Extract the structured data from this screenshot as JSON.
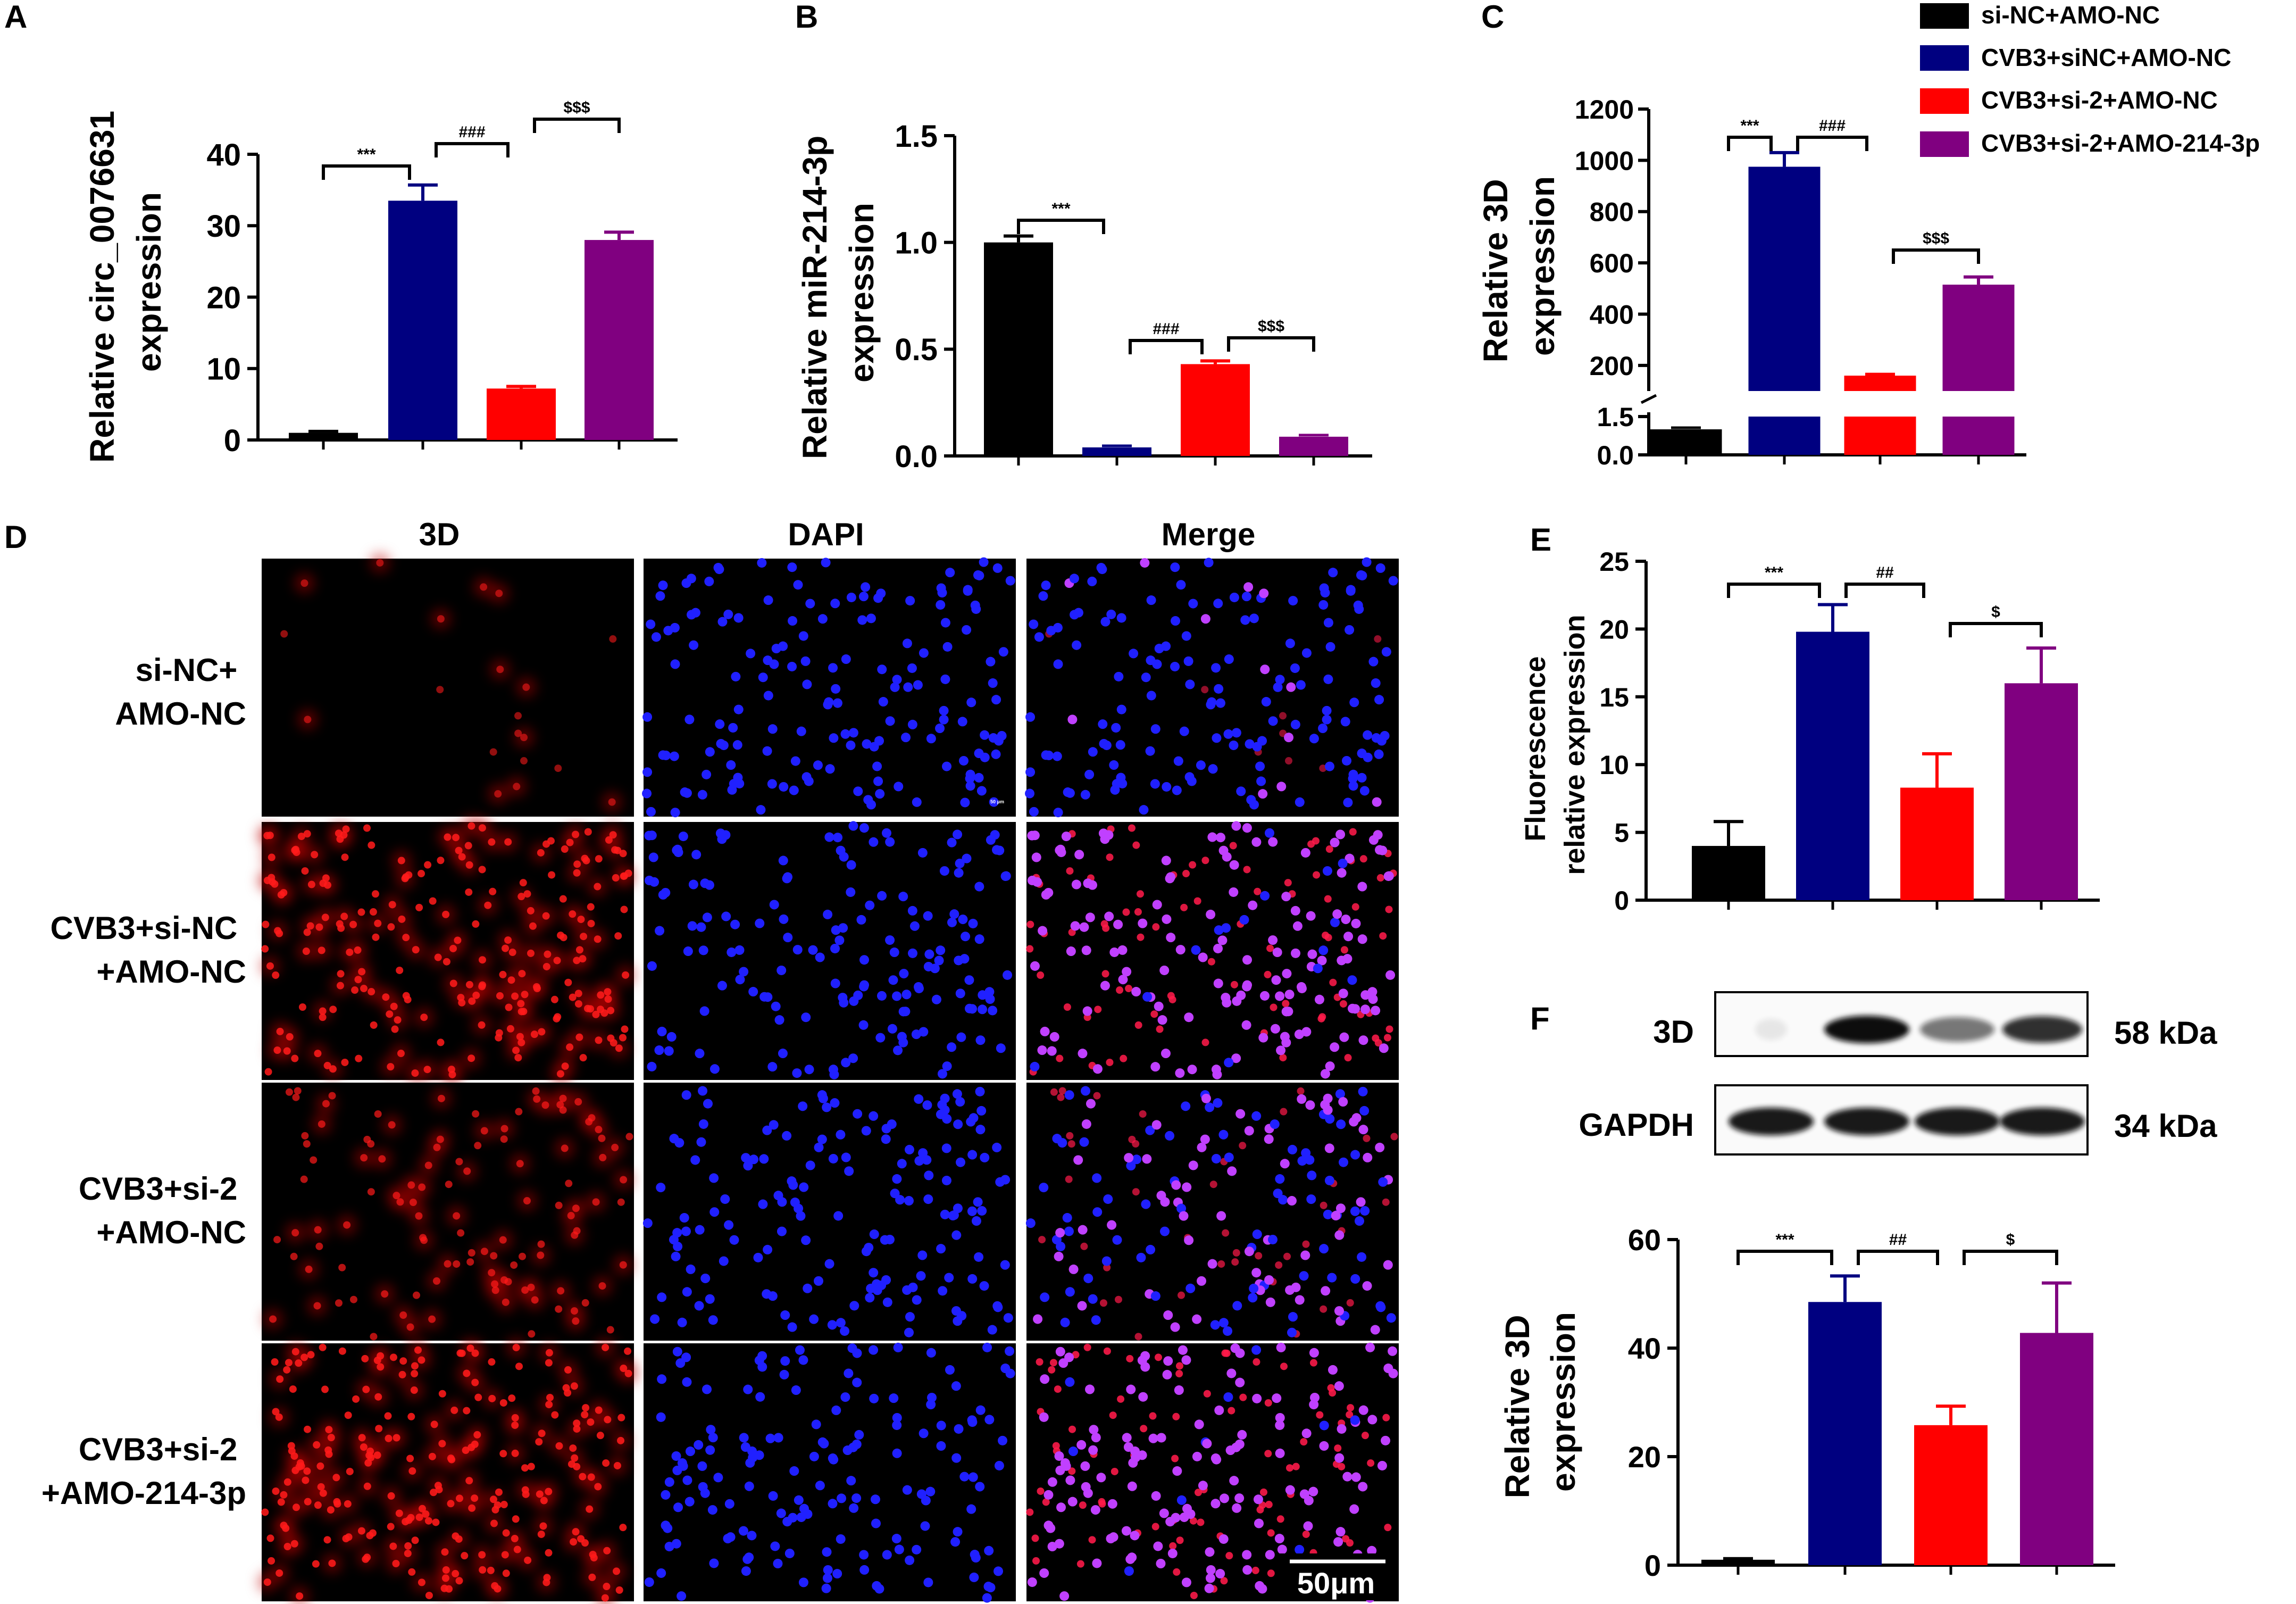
{
  "groups": [
    "si-NC+AMO-NC",
    "CVB3+siNC+AMO-NC",
    "CVB3+si-2+AMO-NC",
    "CVB3+si-2+AMO-214-3p"
  ],
  "colors": {
    "g1": "#000000",
    "g2": "#000080",
    "g3": "#ff0000",
    "g4": "#800080"
  },
  "panels": {
    "A": {
      "letter": "A",
      "ylabel1": "Relative circ_0076631",
      "ylabel2": "expression",
      "ticks": [
        "0",
        "10",
        "20",
        "30",
        "40"
      ],
      "sig": [
        {
          "text": "***",
          "from": 0,
          "to": 1
        },
        {
          "text": "###",
          "from": 1,
          "to": 2
        },
        {
          "text": "$$$",
          "from": 2,
          "to": 3
        }
      ]
    },
    "B": {
      "letter": "B",
      "ylabel1": "Relative miR-214-3p",
      "ylabel2": "expression",
      "ticks": [
        "0.0",
        "0.5",
        "1.0",
        "1.5"
      ],
      "sig": [
        {
          "text": "***",
          "from": 0,
          "to": 1
        },
        {
          "text": "###",
          "from": 1,
          "to": 2
        },
        {
          "text": "$$$",
          "from": 2,
          "to": 3
        }
      ]
    },
    "C": {
      "letter": "C",
      "ylabel1": "Relative 3D",
      "ylabel2": "expression",
      "ticks_upper": [
        "200",
        "400",
        "600",
        "800",
        "1000",
        "1200"
      ],
      "ticks_lower": [
        "0.0",
        "1.5"
      ],
      "sig": [
        {
          "text": "***",
          "from": 0,
          "to": 1
        },
        {
          "text": "###",
          "from": 1,
          "to": 2
        },
        {
          "text": "$$$",
          "from": 2,
          "to": 3
        }
      ]
    },
    "D": {
      "letter": "D",
      "columns": [
        "3D",
        "DAPI",
        "Merge"
      ],
      "rows": [
        [
          "si-NC+",
          "AMO-NC"
        ],
        [
          "CVB3+si-NC",
          "+AMO-NC"
        ],
        [
          "CVB3+si-2",
          "+AMO-NC"
        ],
        [
          "CVB3+si-2",
          "+AMO-214-3p"
        ]
      ],
      "scale_bar": "50μm",
      "inset_scale": "50 μm"
    },
    "E": {
      "letter": "E",
      "ylabel1": "Fluorescence",
      "ylabel2": "relative expression",
      "ticks": [
        "0",
        "5",
        "10",
        "15",
        "20",
        "25"
      ],
      "sig": [
        {
          "text": "***",
          "from": 0,
          "to": 1
        },
        {
          "text": "##",
          "from": 1,
          "to": 2
        },
        {
          "text": "$",
          "from": 2,
          "to": 3
        }
      ]
    },
    "F": {
      "letter": "F",
      "blot": [
        {
          "label": "3D",
          "kda": "58 kDa"
        },
        {
          "label": "GAPDH",
          "kda": "34 kDa"
        }
      ],
      "ylabel1": "Relative 3D",
      "ylabel2": "expression",
      "ticks": [
        "0",
        "20",
        "40",
        "60"
      ],
      "sig": [
        {
          "text": "***",
          "from": 0,
          "to": 1
        },
        {
          "text": "##",
          "from": 1,
          "to": 2
        },
        {
          "text": "$",
          "from": 2,
          "to": 3
        }
      ]
    }
  },
  "chart_data": [
    {
      "panel": "A",
      "type": "bar",
      "categories": [
        "si-NC+AMO-NC",
        "CVB3+siNC+AMO-NC",
        "CVB3+si-2+AMO-NC",
        "CVB3+si-2+AMO-214-3p"
      ],
      "values": [
        1.0,
        33.5,
        7.2,
        28.0
      ],
      "errors": [
        0.2,
        2.2,
        0.3,
        1.1
      ],
      "ylabel": "Relative circ_0076631 expression",
      "ylim": [
        0,
        40
      ]
    },
    {
      "panel": "B",
      "type": "bar",
      "categories": [
        "si-NC+AMO-NC",
        "CVB3+siNC+AMO-NC",
        "CVB3+si-2+AMO-NC",
        "CVB3+si-2+AMO-214-3p"
      ],
      "values": [
        1.0,
        0.04,
        0.43,
        0.09
      ],
      "errors": [
        0.03,
        0.004,
        0.015,
        0.004
      ],
      "ylabel": "Relative miR-214-3p expression",
      "ylim": [
        0,
        1.5
      ]
    },
    {
      "panel": "C",
      "type": "bar",
      "categories": [
        "si-NC+AMO-NC",
        "CVB3+siNC+AMO-NC",
        "CVB3+si-2+AMO-NC",
        "CVB3+si-2+AMO-214-3p"
      ],
      "values": [
        1.0,
        975,
        160,
        515
      ],
      "errors": [
        0.05,
        55,
        5,
        30
      ],
      "ylabel": "Relative 3D expression",
      "ylim": [
        0,
        1200
      ],
      "axis_break": [
        1.5,
        100
      ]
    },
    {
      "panel": "E",
      "type": "bar",
      "categories": [
        "si-NC+AMO-NC",
        "CVB3+siNC+AMO-NC",
        "CVB3+si-2+AMO-NC",
        "CVB3+si-2+AMO-214-3p"
      ],
      "values": [
        4.0,
        19.8,
        8.3,
        16.0
      ],
      "errors": [
        1.8,
        2.0,
        2.5,
        2.6
      ],
      "ylabel": "Fluorescence relative expression",
      "ylim": [
        0,
        25
      ]
    },
    {
      "panel": "F",
      "type": "bar",
      "categories": [
        "si-NC+AMO-NC",
        "CVB3+siNC+AMO-NC",
        "CVB3+si-2+AMO-NC",
        "CVB3+si-2+AMO-214-3p"
      ],
      "values": [
        1.0,
        48.5,
        25.8,
        42.8
      ],
      "errors": [
        0.2,
        4.8,
        3.5,
        9.2
      ],
      "ylabel": "Relative 3D expression",
      "ylim": [
        0,
        60
      ]
    }
  ]
}
